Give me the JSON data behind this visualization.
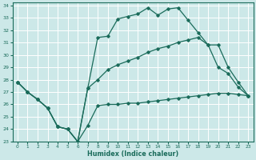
{
  "xlabel": "Humidex (Indice chaleur)",
  "xlim": [
    -0.5,
    23.5
  ],
  "ylim": [
    23,
    34.2
  ],
  "bg_color": "#cce8e8",
  "grid_color": "#ffffff",
  "line_color": "#1a6b5a",
  "line1_x": [
    0,
    1,
    2,
    3,
    4,
    5,
    6,
    7,
    8,
    9,
    10,
    11,
    12,
    13,
    14,
    15,
    16,
    17,
    18,
    19,
    20,
    21,
    22,
    23
  ],
  "line1_y": [
    27.8,
    27.0,
    26.4,
    25.7,
    24.2,
    24.0,
    23.0,
    24.3,
    25.9,
    26.0,
    26.0,
    26.1,
    26.1,
    26.2,
    26.3,
    26.4,
    26.5,
    26.6,
    26.7,
    26.8,
    26.9,
    26.9,
    26.8,
    26.7
  ],
  "line2_x": [
    0,
    1,
    2,
    3,
    4,
    5,
    6,
    7,
    8,
    9,
    10,
    11,
    12,
    13,
    14,
    15,
    16,
    17,
    18,
    19,
    20,
    21,
    22,
    23
  ],
  "line2_y": [
    27.8,
    27.0,
    26.4,
    25.7,
    24.2,
    24.0,
    23.0,
    27.3,
    31.4,
    31.5,
    32.9,
    33.1,
    33.3,
    33.8,
    33.2,
    33.7,
    33.8,
    32.8,
    31.8,
    30.8,
    29.0,
    28.5,
    27.4,
    26.7
  ],
  "line3_x": [
    0,
    1,
    2,
    3,
    4,
    5,
    6,
    7,
    8,
    9,
    10,
    11,
    12,
    13,
    14,
    15,
    16,
    17,
    18,
    19,
    20,
    21,
    22,
    23
  ],
  "line3_y": [
    27.8,
    27.0,
    26.4,
    25.7,
    24.2,
    24.0,
    23.0,
    27.3,
    28.0,
    28.8,
    29.2,
    29.5,
    29.8,
    30.2,
    30.5,
    30.7,
    31.0,
    31.2,
    31.4,
    30.8,
    30.8,
    29.0,
    27.8,
    26.7
  ],
  "ytick_values": [
    23,
    24,
    25,
    26,
    27,
    28,
    29,
    30,
    31,
    32,
    33,
    34
  ]
}
